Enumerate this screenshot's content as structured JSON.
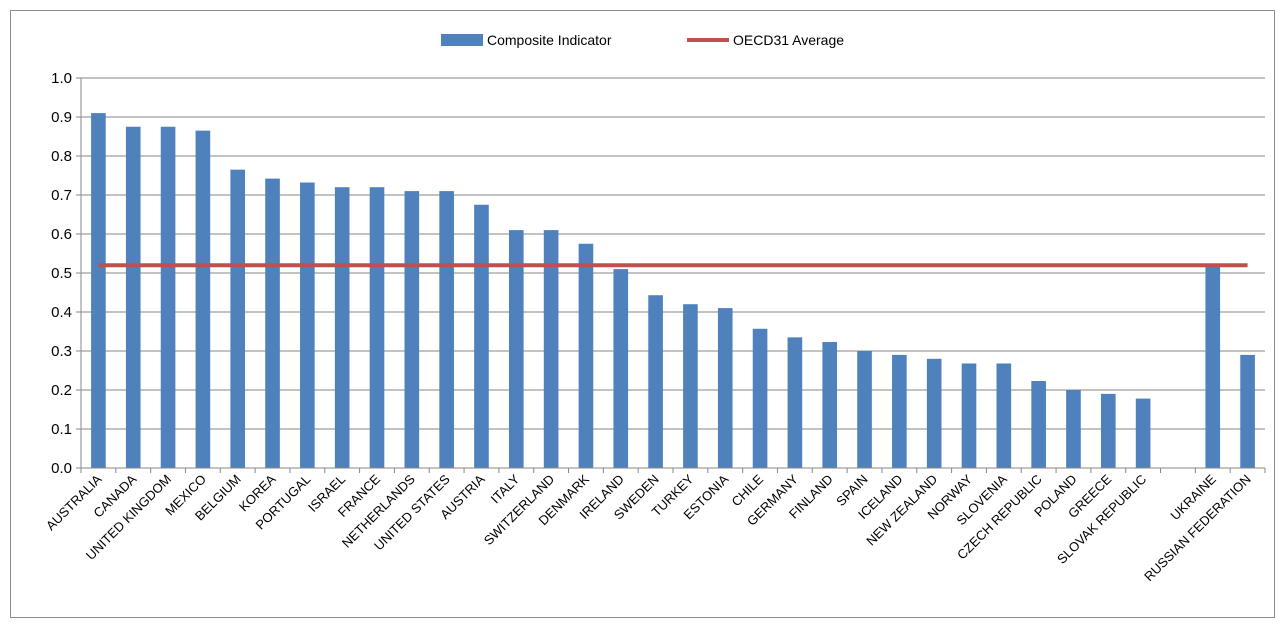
{
  "chart_data": {
    "type": "bar",
    "title": "",
    "xlabel": "",
    "ylabel": "",
    "ylim": [
      0,
      1.0
    ],
    "yticks": [
      "0.0",
      "0.1",
      "0.2",
      "0.3",
      "0.4",
      "0.5",
      "0.6",
      "0.7",
      "0.8",
      "0.9",
      "1.0"
    ],
    "grid": true,
    "legend_position": "top-center",
    "categories": [
      "AUSTRALIA",
      "CANADA",
      "UNITED KINGDOM",
      "MEXICO",
      "BELGIUM",
      "KOREA",
      "PORTUGAL",
      "ISRAEL",
      "FRANCE",
      "NETHERLANDS",
      "UNITED STATES",
      "AUSTRIA",
      "ITALY",
      "SWITZERLAND",
      "DENMARK",
      "IRELAND",
      "SWEDEN",
      "TURKEY",
      "ESTONIA",
      "CHILE",
      "GERMANY",
      "FINLAND",
      "SPAIN",
      "ICELAND",
      "NEW ZEALAND",
      "NORWAY",
      "SLOVENIA",
      "CZECH REPUBLIC",
      "POLAND",
      "GREECE",
      "SLOVAK REPUBLIC",
      "",
      "UKRAINE",
      "RUSSIAN FEDERATION"
    ],
    "series": [
      {
        "name": "Composite Indicator",
        "kind": "bar",
        "color": "#4f81bd",
        "values": [
          0.91,
          0.875,
          0.875,
          0.865,
          0.765,
          0.742,
          0.732,
          0.72,
          0.72,
          0.71,
          0.71,
          0.675,
          0.61,
          0.61,
          0.575,
          0.51,
          0.443,
          0.42,
          0.41,
          0.357,
          0.335,
          0.323,
          0.3,
          0.29,
          0.28,
          0.268,
          0.268,
          0.223,
          0.2,
          0.19,
          0.178,
          null,
          0.52,
          0.29
        ]
      },
      {
        "name": "OECD31 Average",
        "kind": "line",
        "color": "#c0504d",
        "value": 0.52
      }
    ]
  }
}
